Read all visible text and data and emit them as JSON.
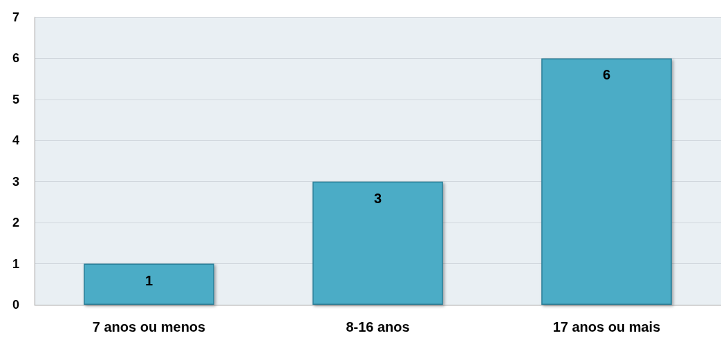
{
  "chart_data": {
    "type": "bar",
    "categories": [
      "7 anos ou menos",
      "8-16 anos",
      "17 anos ou mais"
    ],
    "values": [
      1,
      3,
      6
    ],
    "color": "#4bacc6",
    "ylim": [
      0,
      7
    ],
    "yticks": [
      0,
      1,
      2,
      3,
      4,
      5,
      6,
      7
    ],
    "grid": "y",
    "data_labels": true
  }
}
